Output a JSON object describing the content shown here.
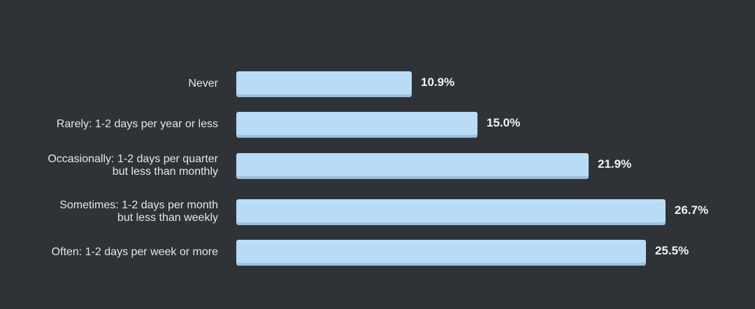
{
  "chart_data": {
    "type": "bar",
    "orientation": "horizontal",
    "categories": [
      "Never",
      "Rarely: 1-2 days per year or less",
      "Occasionally: 1-2 days per quarter but less than monthly",
      "Sometimes: 1-2 days per month but less than weekly",
      "Often: 1-2 days per week or more"
    ],
    "values": [
      10.9,
      15.0,
      21.9,
      26.7,
      25.5
    ],
    "value_labels": [
      "10.9%",
      "15.0%",
      "21.9%",
      "26.7%",
      "25.5%"
    ],
    "title": "",
    "xlabel": "",
    "ylabel": "",
    "xlim": [
      0,
      26.7
    ],
    "grid": false,
    "legend": "none",
    "colors": {
      "background": "#2f3237",
      "bar": "#b8dcf6",
      "bar_shadow": "#9cc0dd",
      "label_text": "#e6e6e6",
      "value_text": "#f2f2f2"
    }
  }
}
